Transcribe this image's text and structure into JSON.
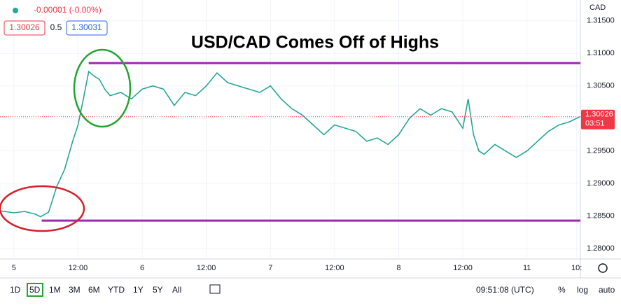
{
  "chart_data": {
    "type": "line",
    "title": "USD/CAD Comes Off of Highs",
    "currency": "CAD",
    "change": "-0.00001 (-0.00%)",
    "bid": 1.30026,
    "spread": 0.5,
    "ask": 1.30031,
    "last_price": 1.30026,
    "countdown": "03:51",
    "x": [
      -2.6,
      0,
      2,
      4,
      5,
      6.5,
      8,
      9.5,
      11,
      12,
      13,
      14,
      15,
      16,
      17,
      18,
      20,
      22,
      24,
      26,
      28,
      30,
      32,
      34,
      36,
      38,
      40,
      42,
      44,
      46,
      48,
      50,
      52,
      54,
      56,
      58,
      60,
      62,
      64,
      66,
      68,
      70,
      72,
      74,
      76,
      78,
      80,
      82,
      84,
      85,
      86,
      87,
      88,
      90,
      92,
      94,
      96,
      98,
      100,
      102,
      104,
      106
    ],
    "series": [
      {
        "name": "USD/CAD",
        "color": "#26a69a",
        "values": [
          1.2858,
          1.2855,
          1.2857,
          1.2853,
          1.2849,
          1.2856,
          1.2895,
          1.2922,
          1.2965,
          1.299,
          1.303,
          1.3072,
          1.3065,
          1.306,
          1.3045,
          1.3035,
          1.304,
          1.303,
          1.3045,
          1.305,
          1.3045,
          1.302,
          1.304,
          1.3035,
          1.305,
          1.307,
          1.3055,
          1.305,
          1.3045,
          1.304,
          1.305,
          1.303,
          1.3015,
          1.3005,
          1.299,
          1.2975,
          1.299,
          1.2985,
          1.298,
          1.2965,
          1.297,
          1.296,
          1.2975,
          1.3,
          1.3015,
          1.3005,
          1.3015,
          1.301,
          1.2985,
          1.303,
          1.2975,
          1.295,
          1.2945,
          1.296,
          1.295,
          1.294,
          1.295,
          1.2965,
          1.298,
          1.299,
          1.2995,
          1.3003
        ]
      }
    ],
    "levels": [
      {
        "value": 1.3085,
        "x_start": 14,
        "color": "#9c27b0"
      },
      {
        "value": 1.2843,
        "x_start": 5.2,
        "color": "#9c27b0"
      }
    ],
    "xlim": [
      -2.6,
      106
    ],
    "xticks": [
      {
        "value": 0,
        "label": "5"
      },
      {
        "value": 12,
        "label": "12:00"
      },
      {
        "value": 24,
        "label": "6"
      },
      {
        "value": 36,
        "label": "12:00"
      },
      {
        "value": 48,
        "label": "7"
      },
      {
        "value": 60,
        "label": "12:00"
      },
      {
        "value": 72,
        "label": "8"
      },
      {
        "value": 84,
        "label": "12:00"
      },
      {
        "value": 96,
        "label": "11"
      },
      {
        "value": 105.3,
        "label": "10:"
      }
    ],
    "ylim": [
      1.2784,
      1.3182
    ],
    "yticks": [
      {
        "value": 1.28,
        "label": "1.28000"
      },
      {
        "value": 1.285,
        "label": "1.28500"
      },
      {
        "value": 1.29,
        "label": "1.29000"
      },
      {
        "value": 1.295,
        "label": "1.29500"
      },
      {
        "value": 1.3,
        "label": "1.30000"
      },
      {
        "value": 1.305,
        "label": "1.30500"
      },
      {
        "value": 1.31,
        "label": "1.31000"
      },
      {
        "value": 1.315,
        "label": "1.31500"
      }
    ],
    "grid": true,
    "toolbar": {
      "ranges": [
        "1D",
        "5D",
        "1M",
        "3M",
        "6M",
        "YTD",
        "1Y",
        "5Y",
        "All"
      ],
      "active": 1,
      "clock": "09:51:08 (UTC)",
      "options": [
        "%",
        "log",
        "auto"
      ]
    }
  }
}
